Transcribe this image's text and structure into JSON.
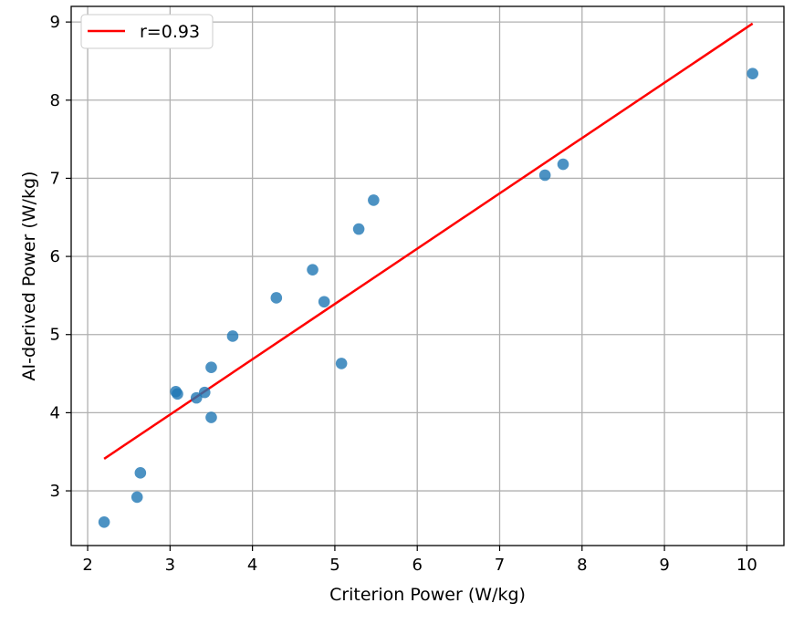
{
  "chart_data": {
    "type": "scatter",
    "title": "",
    "xlabel": "Criterion Power (W/kg)",
    "ylabel": "AI-derived Power (W/kg)",
    "xlim": [
      1.8,
      10.45
    ],
    "ylim": [
      2.3,
      9.2
    ],
    "xticks": [
      2,
      3,
      4,
      5,
      6,
      7,
      8,
      9,
      10
    ],
    "yticks": [
      3,
      4,
      5,
      6,
      7,
      8,
      9
    ],
    "grid": true,
    "legend": {
      "placement": "top-left",
      "entries": [
        "r=0.93"
      ]
    },
    "series": [
      {
        "type": "scatter",
        "color": "#1f77b4",
        "points": [
          [
            2.2,
            2.6
          ],
          [
            2.6,
            2.92
          ],
          [
            2.64,
            3.23
          ],
          [
            3.07,
            4.27
          ],
          [
            3.09,
            4.24
          ],
          [
            3.32,
            4.19
          ],
          [
            3.42,
            4.26
          ],
          [
            3.5,
            4.58
          ],
          [
            3.5,
            3.94
          ],
          [
            3.76,
            4.98
          ],
          [
            4.29,
            5.47
          ],
          [
            4.73,
            5.83
          ],
          [
            4.87,
            5.42
          ],
          [
            5.08,
            4.63
          ],
          [
            5.29,
            6.35
          ],
          [
            5.47,
            6.72
          ],
          [
            7.55,
            7.04
          ],
          [
            7.77,
            7.18
          ],
          [
            10.07,
            8.34
          ]
        ]
      },
      {
        "type": "line",
        "name": "r=0.93",
        "color": "#ff0000",
        "x": [
          2.2,
          10.07
        ],
        "y": [
          3.41,
          8.98
        ]
      }
    ]
  }
}
